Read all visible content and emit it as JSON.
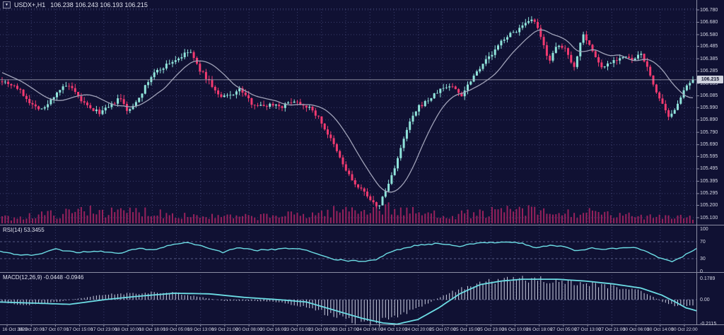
{
  "header": {
    "symbol": "USDX+,H1",
    "ohlc": "106.238 106.243 106.193 106.215",
    "dropdown_icon": "triangle-down"
  },
  "main_chart": {
    "current_price": "106.215",
    "price_axis_top_value": 106.78,
    "price_axis_bottom_value": 105.1
  },
  "indicators": {
    "rsi": {
      "label": "RSI(14) 53.3455",
      "axis_labels": [
        "100",
        "70",
        "30",
        "0"
      ],
      "upper_level": 70,
      "lower_level": 30
    },
    "macd": {
      "label": "MACD(12,26,9) -0.0448 -0.0946",
      "axis_labels": [
        "0.1789",
        "0.00",
        "-0.2115"
      ]
    }
  },
  "colors": {
    "bg": "#101133",
    "grid": "#3c3f6e",
    "level_dash": "#565a86",
    "bull": "#8fe3da",
    "bear": "#f23a70",
    "ma": "#a0a2b8",
    "volume": "#97215c",
    "rsi_line": "#6cdce4",
    "macd_signal": "#6cdce4",
    "macd_hist": "#ccd0e2",
    "text": "#d6d8e6",
    "separator": "#8b8da4",
    "marker_bg": "#cfd2de",
    "marker_text": "#14152e",
    "price_line": "#b4b6c6"
  },
  "chart_data": {
    "type": "candlestick",
    "symbol": "USDX+",
    "timeframe": "H1",
    "title": "USDX+,H1 106.238 106.243 106.193 106.215",
    "candle_count": 228,
    "price_axis_labels": [
      "106.780",
      "106.680",
      "106.580",
      "106.485",
      "106.385",
      "106.285",
      "106.185",
      "106.085",
      "105.990",
      "105.890",
      "105.790",
      "105.690",
      "105.595",
      "105.495",
      "105.395",
      "105.295",
      "105.200",
      "105.100"
    ],
    "time_axis_labels": [
      "16 Oct 2023",
      "16 Oct 20:00",
      "17 Oct 07:00",
      "17 Oct 15:00",
      "17 Oct 23:00",
      "18 Oct 10:00",
      "18 Oct 18:00",
      "19 Oct 05:00",
      "19 Oct 13:00",
      "19 Oct 21:00",
      "20 Oct 08:00",
      "20 Oct 16:00",
      "23 Oct 01:00",
      "23 Oct 09:00",
      "23 Oct 17:00",
      "24 Oct 04:00",
      "24 Oct 12:00",
      "24 Oct 20:00",
      "25 Oct 07:00",
      "25 Oct 15:00",
      "25 Oct 23:00",
      "26 Oct 10:00",
      "26 Oct 18:00",
      "27 Oct 05:00",
      "27 Oct 13:00",
      "27 Oct 21:00",
      "30 Oct 06:00",
      "30 Oct 14:00",
      "30 Oct 22:00"
    ],
    "price_range": [
      105.1,
      106.78
    ],
    "rsi_range": [
      0,
      100
    ],
    "macd_range": [
      -0.2115,
      0.1789
    ],
    "last_values": {
      "open": 106.238,
      "high": 106.243,
      "low": 106.193,
      "close": 106.215,
      "rsi": 53.3455,
      "macd": -0.0448,
      "macd_signal": -0.0946
    },
    "price_path": [
      [
        0,
        106.21
      ],
      [
        0.02,
        106.16
      ],
      [
        0.046,
        106.0
      ],
      [
        0.061,
        105.98
      ],
      [
        0.081,
        106.13
      ],
      [
        0.096,
        106.17
      ],
      [
        0.112,
        106.06
      ],
      [
        0.127,
        105.98
      ],
      [
        0.142,
        105.95
      ],
      [
        0.157,
        106.0
      ],
      [
        0.17,
        106.07
      ],
      [
        0.183,
        105.95
      ],
      [
        0.203,
        106.12
      ],
      [
        0.218,
        106.26
      ],
      [
        0.239,
        106.34
      ],
      [
        0.259,
        106.4
      ],
      [
        0.272,
        106.45
      ],
      [
        0.284,
        106.31
      ],
      [
        0.3,
        106.2
      ],
      [
        0.315,
        106.07
      ],
      [
        0.33,
        106.09
      ],
      [
        0.345,
        106.14
      ],
      [
        0.36,
        106.03
      ],
      [
        0.376,
        106.0
      ],
      [
        0.391,
        106.02
      ],
      [
        0.406,
        106.0
      ],
      [
        0.421,
        106.05
      ],
      [
        0.442,
        106.0
      ],
      [
        0.457,
        105.92
      ],
      [
        0.477,
        105.72
      ],
      [
        0.497,
        105.49
      ],
      [
        0.513,
        105.35
      ],
      [
        0.528,
        105.29
      ],
      [
        0.543,
        105.17
      ],
      [
        0.558,
        105.35
      ],
      [
        0.574,
        105.6
      ],
      [
        0.589,
        105.86
      ],
      [
        0.604,
        106.0
      ],
      [
        0.619,
        106.06
      ],
      [
        0.635,
        106.14
      ],
      [
        0.65,
        106.17
      ],
      [
        0.665,
        106.09
      ],
      [
        0.68,
        106.23
      ],
      [
        0.696,
        106.35
      ],
      [
        0.711,
        106.43
      ],
      [
        0.726,
        106.55
      ],
      [
        0.741,
        106.6
      ],
      [
        0.757,
        106.66
      ],
      [
        0.77,
        106.7
      ],
      [
        0.782,
        106.52
      ],
      [
        0.792,
        106.37
      ],
      [
        0.804,
        106.49
      ],
      [
        0.817,
        106.46
      ],
      [
        0.828,
        106.31
      ],
      [
        0.841,
        106.6
      ],
      [
        0.853,
        106.46
      ],
      [
        0.868,
        106.31
      ],
      [
        0.883,
        106.37
      ],
      [
        0.899,
        106.4
      ],
      [
        0.914,
        106.37
      ],
      [
        0.926,
        106.43
      ],
      [
        0.939,
        106.23
      ],
      [
        0.954,
        106.03
      ],
      [
        0.966,
        105.89
      ],
      [
        0.98,
        106.06
      ],
      [
        0.993,
        106.17
      ],
      [
        1,
        106.215
      ]
    ],
    "rsi_path": [
      [
        0,
        48
      ],
      [
        0.02,
        40
      ],
      [
        0.05,
        38
      ],
      [
        0.08,
        52
      ],
      [
        0.11,
        45
      ],
      [
        0.14,
        48
      ],
      [
        0.17,
        42
      ],
      [
        0.2,
        55
      ],
      [
        0.22,
        50
      ],
      [
        0.25,
        65
      ],
      [
        0.27,
        68
      ],
      [
        0.3,
        55
      ],
      [
        0.32,
        45
      ],
      [
        0.34,
        55
      ],
      [
        0.37,
        50
      ],
      [
        0.4,
        52
      ],
      [
        0.42,
        55
      ],
      [
        0.44,
        50
      ],
      [
        0.46,
        38
      ],
      [
        0.48,
        28
      ],
      [
        0.5,
        25
      ],
      [
        0.52,
        24
      ],
      [
        0.54,
        28
      ],
      [
        0.56,
        45
      ],
      [
        0.58,
        55
      ],
      [
        0.6,
        62
      ],
      [
        0.63,
        66
      ],
      [
        0.66,
        60
      ],
      [
        0.68,
        65
      ],
      [
        0.7,
        68
      ],
      [
        0.73,
        70
      ],
      [
        0.75,
        66
      ],
      [
        0.77,
        55
      ],
      [
        0.79,
        62
      ],
      [
        0.81,
        58
      ],
      [
        0.83,
        48
      ],
      [
        0.85,
        55
      ],
      [
        0.87,
        52
      ],
      [
        0.89,
        55
      ],
      [
        0.91,
        57
      ],
      [
        0.93,
        45
      ],
      [
        0.95,
        30
      ],
      [
        0.965,
        22
      ],
      [
        0.98,
        35
      ],
      [
        1,
        53.3
      ]
    ],
    "macd_line_path": [
      [
        0,
        -0.03
      ],
      [
        0.04,
        -0.05
      ],
      [
        0.08,
        -0.02
      ],
      [
        0.12,
        0.02
      ],
      [
        0.16,
        0.05
      ],
      [
        0.2,
        0.06
      ],
      [
        0.24,
        0.07
      ],
      [
        0.28,
        0.03
      ],
      [
        0.32,
        -0.01
      ],
      [
        0.36,
        -0.01
      ],
      [
        0.4,
        -0.02
      ],
      [
        0.44,
        -0.07
      ],
      [
        0.48,
        -0.14
      ],
      [
        0.52,
        -0.2
      ],
      [
        0.545,
        -0.21
      ],
      [
        0.56,
        -0.17
      ],
      [
        0.6,
        -0.08
      ],
      [
        0.64,
        0.04
      ],
      [
        0.68,
        0.13
      ],
      [
        0.72,
        0.17
      ],
      [
        0.76,
        0.18
      ],
      [
        0.8,
        0.17
      ],
      [
        0.84,
        0.14
      ],
      [
        0.88,
        0.12
      ],
      [
        0.92,
        0.09
      ],
      [
        0.94,
        0.03
      ],
      [
        0.96,
        -0.03
      ],
      [
        0.98,
        -0.06
      ],
      [
        1,
        -0.045
      ]
    ],
    "macd_signal_path": [
      [
        0,
        -0.02
      ],
      [
        0.05,
        -0.03
      ],
      [
        0.1,
        -0.04
      ],
      [
        0.15,
        0.0
      ],
      [
        0.2,
        0.03
      ],
      [
        0.25,
        0.055
      ],
      [
        0.3,
        0.05
      ],
      [
        0.35,
        0.02
      ],
      [
        0.4,
        0.0
      ],
      [
        0.44,
        -0.02
      ],
      [
        0.48,
        -0.09
      ],
      [
        0.52,
        -0.16
      ],
      [
        0.55,
        -0.2
      ],
      [
        0.57,
        -0.21
      ],
      [
        0.6,
        -0.17
      ],
      [
        0.63,
        -0.07
      ],
      [
        0.66,
        0.05
      ],
      [
        0.69,
        0.13
      ],
      [
        0.72,
        0.16
      ],
      [
        0.75,
        0.175
      ],
      [
        0.8,
        0.175
      ],
      [
        0.84,
        0.16
      ],
      [
        0.88,
        0.135
      ],
      [
        0.92,
        0.1
      ],
      [
        0.95,
        0.04
      ],
      [
        0.97,
        -0.02
      ],
      [
        0.985,
        -0.07
      ],
      [
        1,
        -0.095
      ]
    ],
    "volume_profile": [
      [
        0,
        10
      ],
      [
        0.05,
        16
      ],
      [
        0.1,
        20
      ],
      [
        0.13,
        30
      ],
      [
        0.16,
        20
      ],
      [
        0.2,
        24
      ],
      [
        0.25,
        18
      ],
      [
        0.3,
        13
      ],
      [
        0.35,
        12
      ],
      [
        0.4,
        15
      ],
      [
        0.45,
        18
      ],
      [
        0.5,
        26
      ],
      [
        0.55,
        30
      ],
      [
        0.6,
        20
      ],
      [
        0.65,
        16
      ],
      [
        0.7,
        20
      ],
      [
        0.75,
        26
      ],
      [
        0.8,
        18
      ],
      [
        0.85,
        20
      ],
      [
        0.9,
        14
      ],
      [
        0.95,
        16
      ],
      [
        1,
        12
      ]
    ]
  }
}
